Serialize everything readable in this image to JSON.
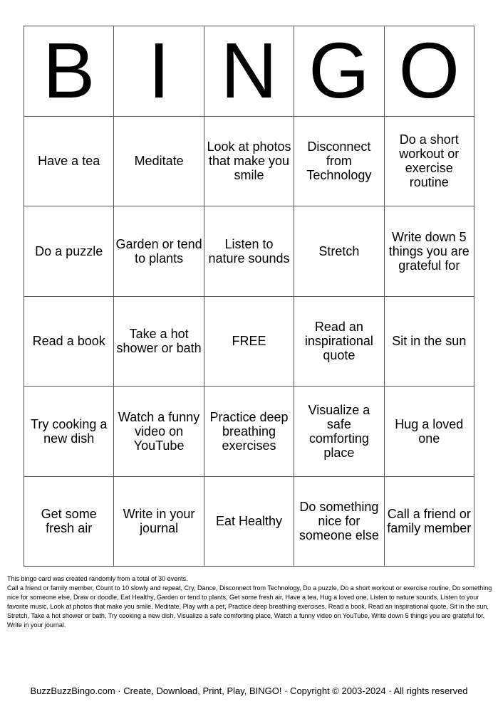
{
  "header": [
    "B",
    "I",
    "N",
    "G",
    "O"
  ],
  "cells": [
    [
      "Have a tea",
      "Meditate",
      "Look at photos that make you smile",
      "Disconnect from Technology",
      "Do a short workout or exercise routine"
    ],
    [
      "Do a puzzle",
      "Garden or tend to plants",
      "Listen to nature sounds",
      "Stretch",
      "Write down 5 things you are grateful for"
    ],
    [
      "Read a book",
      "Take a hot shower or bath",
      "FREE",
      "Read an inspirational quote",
      "Sit in the sun"
    ],
    [
      "Try cooking a new dish",
      "Watch a funny video on YouTube",
      "Practice deep breathing exercises",
      "Visualize a safe comforting place",
      "Hug a loved one"
    ],
    [
      "Get some fresh air",
      "Write in your journal",
      "Eat Healthy",
      "Do something nice for someone else",
      "Call a friend or family member"
    ]
  ],
  "info": {
    "summary": "This bingo card was created randomly from a total of 30 events.",
    "events": "Call a friend or family member, Count to 10 slowly and repeat, Cry, Dance, Disconnect from Technology, Do a puzzle, Do a short workout or exercise routine, Do something nice for someone else, Draw or doodle, Eat Healthy, Garden or tend to plants, Get some fresh air, Have a tea, Hug a loved one, Listen to nature sounds, Listen to your favorite music, Look at photos that make you smile, Meditate, Play with a pet, Practice deep breathing exercises, Read a book, Read an inspirational quote, Sit in the sun, Stretch, Take a hot shower or bath, Try cooking a new dish, Visualize a safe  comforting place, Watch a funny video on YouTube, Write down 5 things you are grateful for, Write in your journal."
  },
  "footer": "BuzzBuzzBingo.com · Create, Download, Print, Play, BINGO! · Copyright © 2003-2024 · All rights reserved"
}
